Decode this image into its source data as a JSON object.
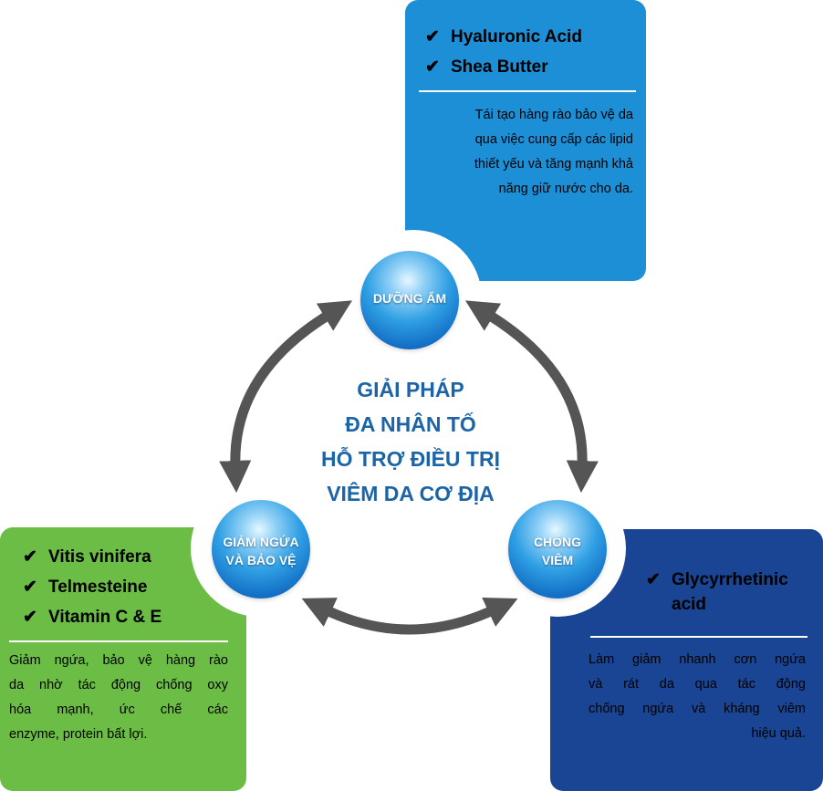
{
  "center_title": [
    "GIẢI PHÁP",
    "ĐA NHÂN TỐ",
    "HỖ TRỢ ĐIỀU TRỊ",
    "VIÊM DA CƠ ĐỊA"
  ],
  "nodes": {
    "top": {
      "label": "DƯỠNG ẨM"
    },
    "left": {
      "label_line1": "GIẢM NGỨA",
      "label_line2": "VÀ BẢO VỆ"
    },
    "right": {
      "label_line1": "CHỐNG",
      "label_line2": "VIÊM"
    }
  },
  "panels": {
    "top": {
      "items": [
        "Hyaluronic Acid",
        "Shea Butter"
      ],
      "description": [
        "Tái tạo hàng rào bảo vệ da",
        "qua việc cung cấp các lipid",
        "thiết yếu và tăng mạnh khả",
        "năng giữ nước cho da."
      ]
    },
    "left": {
      "items": [
        "Vitis vinifera",
        "Telmesteine",
        "Vitamin C & E"
      ],
      "description": [
        "Giảm ngứa, bảo vệ hàng rào",
        "da nhờ tác động chống oxy",
        "hóa mạnh, ức chế các",
        "enzyme, protein bất lợi."
      ]
    },
    "right": {
      "item_line1": "Glycyrrhetinic",
      "item_line2": "acid",
      "description": [
        "Làm giảm nhanh cơn ngứa",
        "và rát da qua tác động",
        "chống ngứa và kháng viêm",
        "hiệu quả."
      ]
    }
  },
  "check_symbol": "✔",
  "colors": {
    "top_panel": "#1c8fd6",
    "left_panel": "#6cbd45",
    "right_panel": "#1a4594",
    "title": "#1b64a8",
    "arrow": "#555555"
  }
}
